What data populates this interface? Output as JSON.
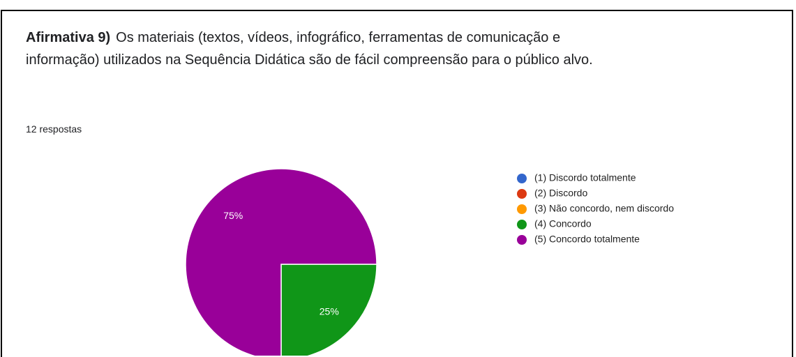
{
  "chart_data": {
    "type": "pie",
    "title_bold": "Afirmativa 9)",
    "title": "Os materiais (textos, vídeos, infográfico, ferramentas de comunicação e informação) utilizados na Sequência Didática são de fácil compreensão para o público alvo.",
    "subtitle": "12 respostas",
    "categories": [
      "(1) Discordo totalmente",
      "(2) Discordo",
      "(3) Não concordo, nem discordo",
      "(4) Concordo",
      "(5) Concordo totalmente"
    ],
    "values": [
      0,
      0,
      0,
      25,
      75
    ],
    "value_labels": [
      null,
      null,
      null,
      "25%",
      "75%"
    ],
    "colors": [
      "#3366cc",
      "#dc3912",
      "#ff9900",
      "#109618",
      "#990099"
    ],
    "legend": "right"
  }
}
